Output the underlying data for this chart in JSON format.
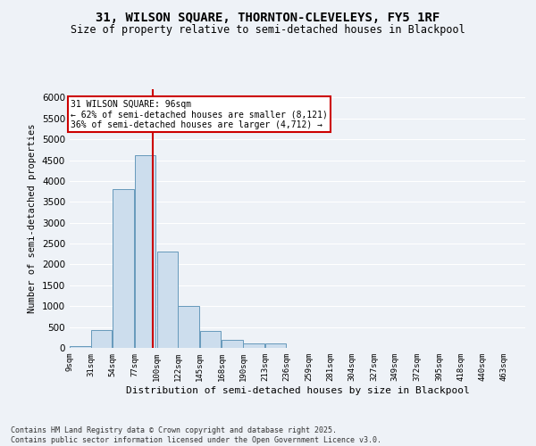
{
  "title_line1": "31, WILSON SQUARE, THORNTON-CLEVELEYS, FY5 1RF",
  "title_line2": "Size of property relative to semi-detached houses in Blackpool",
  "xlabel": "Distribution of semi-detached houses by size in Blackpool",
  "ylabel": "Number of semi-detached properties",
  "footnote": "Contains HM Land Registry data © Crown copyright and database right 2025.\nContains public sector information licensed under the Open Government Licence v3.0.",
  "annotation_title": "31 WILSON SQUARE: 96sqm",
  "annotation_line2": "← 62% of semi-detached houses are smaller (8,121)",
  "annotation_line3": "36% of semi-detached houses are larger (4,712) →",
  "property_size": 96,
  "bar_color": "#ccdded",
  "bar_edge_color": "#6699bb",
  "vline_color": "#cc0000",
  "background_color": "#eef2f7",
  "annotation_box_color": "#ffffff",
  "annotation_box_edge": "#cc0000",
  "bins": [
    9,
    31,
    54,
    77,
    100,
    122,
    145,
    168,
    190,
    213,
    236,
    259,
    281,
    304,
    327,
    349,
    372,
    395,
    418,
    440,
    463
  ],
  "counts": [
    50,
    420,
    3800,
    4620,
    2300,
    1000,
    400,
    200,
    110,
    110,
    0,
    0,
    0,
    0,
    0,
    0,
    0,
    0,
    0,
    0
  ],
  "ylim": [
    0,
    6200
  ],
  "yticks": [
    0,
    500,
    1000,
    1500,
    2000,
    2500,
    3000,
    3500,
    4000,
    4500,
    5000,
    5500,
    6000
  ],
  "grid_color": "#ffffff",
  "title_fontsize": 10,
  "subtitle_fontsize": 8.5
}
